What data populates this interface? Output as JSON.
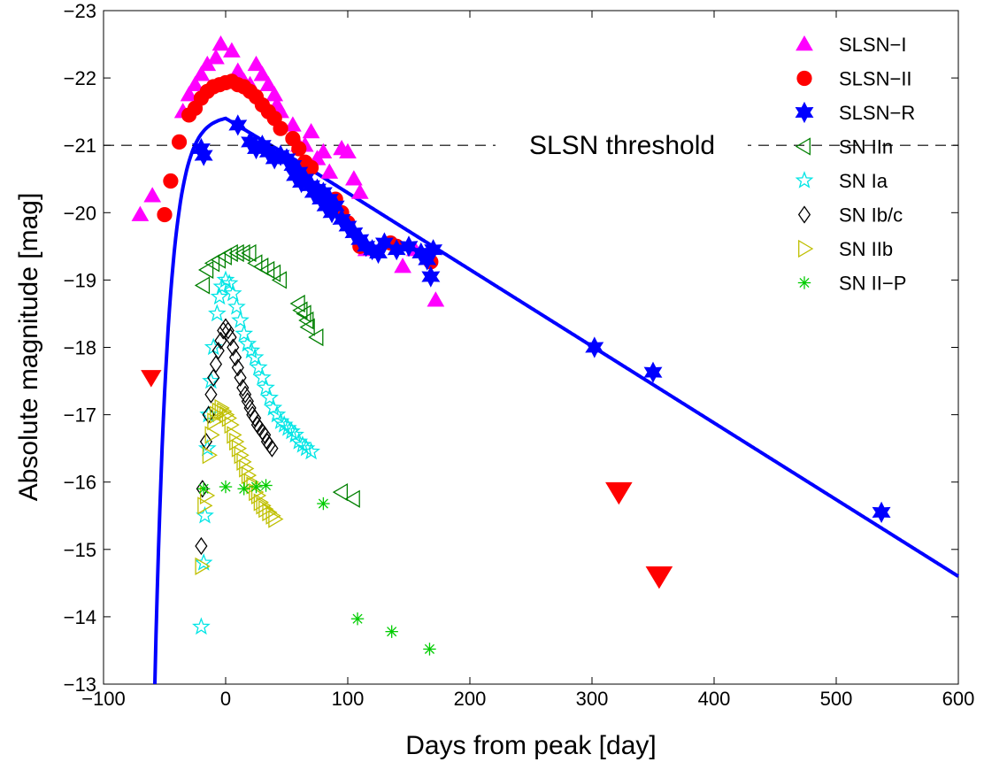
{
  "chart_data": {
    "type": "scatter",
    "xlabel": "Days from peak [day]",
    "ylabel": "Absolute magnitude [mag]",
    "xlim": [
      -100,
      600
    ],
    "ylim": [
      -13,
      -23
    ],
    "y_inverted": true,
    "xticks": [
      "−100",
      "0",
      "100",
      "200",
      "300",
      "400",
      "500",
      "600"
    ],
    "yticks": [
      "−13",
      "−14",
      "−15",
      "−16",
      "−17",
      "−18",
      "−19",
      "−20",
      "−21",
      "−22",
      "−23"
    ],
    "legend_position": "top-right",
    "grid": false,
    "annotations": [
      {
        "text": "SLSN threshold",
        "type": "hline",
        "y": -21,
        "style": "dashed",
        "color": "#000000"
      }
    ],
    "series": [
      {
        "name": "SLSN−I",
        "marker": "triangle-up",
        "color": "#ff00ff",
        "filled": true,
        "points": [
          [
            -70,
            -19.97
          ],
          [
            -60,
            -20.25
          ],
          [
            -35,
            -21.5
          ],
          [
            -30,
            -21.75
          ],
          [
            -25,
            -21.9
          ],
          [
            -20,
            -22.05
          ],
          [
            -15,
            -22.2
          ],
          [
            -8,
            -22.3
          ],
          [
            -4,
            -22.5
          ],
          [
            5,
            -22.4
          ],
          [
            10,
            -22.1
          ],
          [
            15,
            -21.95
          ],
          [
            20,
            -21.9
          ],
          [
            25,
            -22.2
          ],
          [
            30,
            -22.05
          ],
          [
            35,
            -21.9
          ],
          [
            40,
            -21.75
          ],
          [
            42,
            -21.6
          ],
          [
            45,
            -21.5
          ],
          [
            55,
            -21.3
          ],
          [
            60,
            -21.0
          ],
          [
            65,
            -21.0
          ],
          [
            70,
            -21.2
          ],
          [
            75,
            -20.8
          ],
          [
            80,
            -20.9
          ],
          [
            85,
            -20.6
          ],
          [
            95,
            -20.95
          ],
          [
            100,
            -20.9
          ],
          [
            105,
            -20.5
          ],
          [
            110,
            -20.3
          ],
          [
            115,
            -19.45
          ],
          [
            145,
            -19.2
          ],
          [
            155,
            -19.45
          ],
          [
            172,
            -18.7
          ]
        ]
      },
      {
        "name": "SLSN−II",
        "marker": "circle",
        "color": "#ff0000",
        "filled": true,
        "points": [
          [
            -50,
            -19.97
          ],
          [
            -45,
            -20.47
          ],
          [
            -38,
            -21.05
          ],
          [
            -30,
            -21.45
          ],
          [
            -25,
            -21.55
          ],
          [
            -20,
            -21.7
          ],
          [
            -15,
            -21.8
          ],
          [
            -10,
            -21.87
          ],
          [
            -5,
            -21.9
          ],
          [
            0,
            -21.93
          ],
          [
            5,
            -21.95
          ],
          [
            10,
            -21.9
          ],
          [
            15,
            -21.87
          ],
          [
            20,
            -21.8
          ],
          [
            25,
            -21.72
          ],
          [
            30,
            -21.6
          ],
          [
            35,
            -21.5
          ],
          [
            40,
            -21.4
          ],
          [
            45,
            -21.25
          ],
          [
            55,
            -21.1
          ],
          [
            60,
            -20.95
          ],
          [
            65,
            -20.75
          ],
          [
            70,
            -20.67
          ],
          [
            90,
            -20.2
          ],
          [
            95,
            -20.0
          ],
          [
            100,
            -19.85
          ],
          [
            110,
            -19.5
          ],
          [
            135,
            -19.55
          ],
          [
            140,
            -19.5
          ],
          [
            168,
            -19.27
          ]
        ]
      },
      {
        "name": "SLSN−R",
        "marker": "star6",
        "color": "#0000ff",
        "filled": true,
        "points": [
          [
            -20,
            -20.95
          ],
          [
            -18,
            -20.85
          ],
          [
            10,
            -21.3
          ],
          [
            20,
            -21.05
          ],
          [
            25,
            -20.95
          ],
          [
            30,
            -21.0
          ],
          [
            35,
            -20.9
          ],
          [
            40,
            -20.8
          ],
          [
            45,
            -20.85
          ],
          [
            50,
            -20.8
          ],
          [
            55,
            -20.7
          ],
          [
            57,
            -20.55
          ],
          [
            60,
            -20.6
          ],
          [
            62,
            -20.45
          ],
          [
            65,
            -20.5
          ],
          [
            70,
            -20.4
          ],
          [
            72,
            -20.3
          ],
          [
            75,
            -20.35
          ],
          [
            78,
            -20.2
          ],
          [
            80,
            -20.3
          ],
          [
            82,
            -20.1
          ],
          [
            85,
            -20.2
          ],
          [
            87,
            -20.0
          ],
          [
            90,
            -20.1
          ],
          [
            95,
            -19.9
          ],
          [
            100,
            -19.8
          ],
          [
            105,
            -19.7
          ],
          [
            110,
            -19.6
          ],
          [
            115,
            -19.5
          ],
          [
            120,
            -19.45
          ],
          [
            125,
            -19.4
          ],
          [
            130,
            -19.55
          ],
          [
            140,
            -19.45
          ],
          [
            150,
            -19.5
          ],
          [
            160,
            -19.4
          ],
          [
            165,
            -19.3
          ],
          [
            168,
            -19.05
          ],
          [
            170,
            -19.45
          ],
          [
            302,
            -18.0
          ],
          [
            350,
            -17.63
          ],
          [
            537,
            -15.55
          ]
        ]
      },
      {
        "name": "SN IIn",
        "marker": "triangle-left",
        "color": "#008000",
        "filled": false,
        "points": [
          [
            -18,
            -18.92
          ],
          [
            -15,
            -19.15
          ],
          [
            -10,
            -19.25
          ],
          [
            -5,
            -19.3
          ],
          [
            0,
            -19.35
          ],
          [
            5,
            -19.4
          ],
          [
            10,
            -19.4
          ],
          [
            15,
            -19.4
          ],
          [
            20,
            -19.4
          ],
          [
            25,
            -19.25
          ],
          [
            30,
            -19.2
          ],
          [
            35,
            -19.15
          ],
          [
            40,
            -19.1
          ],
          [
            45,
            -19.0
          ],
          [
            60,
            -18.65
          ],
          [
            62,
            -18.55
          ],
          [
            65,
            -18.5
          ],
          [
            67,
            -18.4
          ],
          [
            68,
            -18.3
          ],
          [
            75,
            -18.15
          ],
          [
            95,
            -15.85
          ],
          [
            105,
            -15.75
          ]
        ]
      },
      {
        "name": "SN Ia",
        "marker": "star5",
        "color": "#00e5e5",
        "filled": false,
        "points": [
          [
            -20,
            -13.85
          ],
          [
            -18,
            -14.8
          ],
          [
            -17,
            -15.5
          ],
          [
            -15,
            -16.5
          ],
          [
            -14,
            -17.0
          ],
          [
            -12,
            -17.5
          ],
          [
            -10,
            -18.0
          ],
          [
            -7,
            -18.5
          ],
          [
            -5,
            -18.75
          ],
          [
            -3,
            -18.9
          ],
          [
            0,
            -19.0
          ],
          [
            3,
            -18.95
          ],
          [
            6,
            -18.8
          ],
          [
            9,
            -18.6
          ],
          [
            12,
            -18.4
          ],
          [
            15,
            -18.2
          ],
          [
            18,
            -18.05
          ],
          [
            21,
            -17.95
          ],
          [
            24,
            -17.85
          ],
          [
            27,
            -17.7
          ],
          [
            30,
            -17.55
          ],
          [
            33,
            -17.4
          ],
          [
            36,
            -17.25
          ],
          [
            39,
            -17.1
          ],
          [
            42,
            -17.0
          ],
          [
            45,
            -16.9
          ],
          [
            48,
            -16.85
          ],
          [
            51,
            -16.8
          ],
          [
            54,
            -16.75
          ],
          [
            57,
            -16.7
          ],
          [
            60,
            -16.6
          ],
          [
            63,
            -16.55
          ],
          [
            66,
            -16.5
          ],
          [
            70,
            -16.45
          ]
        ]
      },
      {
        "name": "SN Ib/c",
        "marker": "diamond",
        "color": "#000000",
        "filled": false,
        "points": [
          [
            -20,
            -15.05
          ],
          [
            -19,
            -15.9
          ],
          [
            -16,
            -16.6
          ],
          [
            -14,
            -17.0
          ],
          [
            -12,
            -17.3
          ],
          [
            -10,
            -17.55
          ],
          [
            -8,
            -17.75
          ],
          [
            -6,
            -17.95
          ],
          [
            -4,
            -18.1
          ],
          [
            -2,
            -18.25
          ],
          [
            0,
            -18.3
          ],
          [
            2,
            -18.25
          ],
          [
            4,
            -18.15
          ],
          [
            6,
            -18.0
          ],
          [
            8,
            -17.85
          ],
          [
            10,
            -17.7
          ],
          [
            12,
            -17.55
          ],
          [
            14,
            -17.4
          ],
          [
            16,
            -17.3
          ],
          [
            18,
            -17.2
          ],
          [
            20,
            -17.1
          ],
          [
            22,
            -17.0
          ],
          [
            24,
            -16.95
          ],
          [
            26,
            -16.85
          ],
          [
            28,
            -16.8
          ],
          [
            30,
            -16.75
          ],
          [
            32,
            -16.7
          ],
          [
            34,
            -16.6
          ],
          [
            36,
            -16.55
          ],
          [
            38,
            -16.5
          ]
        ]
      },
      {
        "name": "SN IIb",
        "marker": "triangle-right",
        "color": "#bfbf00",
        "filled": false,
        "points": [
          [
            -20,
            -14.75
          ],
          [
            -18,
            -15.65
          ],
          [
            -16,
            -15.8
          ],
          [
            -14,
            -16.4
          ],
          [
            -12,
            -16.7
          ],
          [
            -10,
            -16.9
          ],
          [
            -8,
            -17.0
          ],
          [
            -6,
            -17.05
          ],
          [
            -4,
            -17.1
          ],
          [
            -2,
            -17.05
          ],
          [
            0,
            -17.0
          ],
          [
            2,
            -16.95
          ],
          [
            4,
            -16.85
          ],
          [
            6,
            -16.7
          ],
          [
            8,
            -16.6
          ],
          [
            10,
            -16.5
          ],
          [
            12,
            -16.4
          ],
          [
            14,
            -16.3
          ],
          [
            16,
            -16.2
          ],
          [
            18,
            -16.1
          ],
          [
            20,
            -16.0
          ],
          [
            22,
            -15.95
          ],
          [
            24,
            -15.85
          ],
          [
            26,
            -15.8
          ],
          [
            28,
            -15.7
          ],
          [
            30,
            -15.65
          ],
          [
            32,
            -15.6
          ],
          [
            35,
            -15.55
          ],
          [
            38,
            -15.5
          ],
          [
            40,
            -15.45
          ]
        ]
      },
      {
        "name": "SN II−P",
        "marker": "asterisk",
        "color": "#00cc00",
        "filled": false,
        "points": [
          [
            -18,
            -15.9
          ],
          [
            0,
            -15.93
          ],
          [
            15,
            -15.9
          ],
          [
            25,
            -15.93
          ],
          [
            33,
            -15.95
          ],
          [
            80,
            -15.68
          ],
          [
            108,
            -13.97
          ],
          [
            136,
            -13.78
          ],
          [
            167,
            -13.52
          ]
        ]
      },
      {
        "name": "",
        "marker": "triangle-down",
        "color": "#ff0000",
        "filled": true,
        "legend": false,
        "points": [
          [
            -61,
            -17.55
          ],
          [
            322,
            -15.85
          ],
          [
            355,
            -14.6
          ]
        ]
      }
    ],
    "fit_curve": {
      "color": "#0000ff",
      "label": ""
    }
  }
}
